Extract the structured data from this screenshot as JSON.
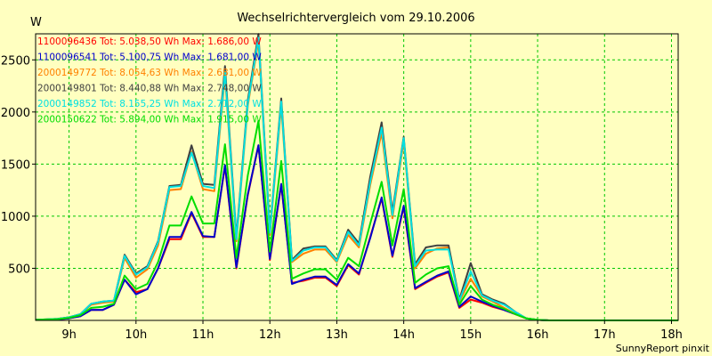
{
  "chart_data": {
    "type": "line",
    "title": "Wechselrichtervergleich vom 29.10.2006",
    "ylabel": "W",
    "footer": "SunnyReport pinxit",
    "xlim": [
      8.5,
      18.1
    ],
    "ylim": [
      0,
      2750
    ],
    "grid": true,
    "legend_position": "top-left",
    "xticks": [
      9,
      10,
      11,
      12,
      13,
      14,
      15,
      16,
      17,
      18
    ],
    "xtick_labels": [
      "9h",
      "10h",
      "11h",
      "12h",
      "13h",
      "14h",
      "15h",
      "16h",
      "17h",
      "18h"
    ],
    "yticks": [
      500,
      1000,
      1500,
      2000,
      2500
    ],
    "ytick_labels": [
      "500",
      "1000",
      "1500",
      "2000",
      "2500"
    ],
    "x": [
      8.5,
      8.83,
      9.0,
      9.17,
      9.33,
      9.5,
      9.67,
      9.83,
      10.0,
      10.17,
      10.33,
      10.5,
      10.67,
      10.83,
      11.0,
      11.17,
      11.33,
      11.5,
      11.67,
      11.83,
      12.0,
      12.17,
      12.33,
      12.5,
      12.67,
      12.83,
      13.0,
      13.17,
      13.33,
      13.5,
      13.67,
      13.83,
      14.0,
      14.17,
      14.33,
      14.5,
      14.67,
      14.83,
      15.0,
      15.17,
      15.33,
      15.5,
      15.67,
      15.83,
      16.0,
      16.17,
      16.33,
      16.5,
      16.67,
      16.83,
      17.0,
      17.17,
      17.33,
      17.5,
      17.67,
      17.83,
      18.0,
      18.1
    ],
    "series": [
      {
        "name": "1100096436",
        "label": "1100096436 Tot: 5.038,50 Wh Max: 1.686,00 W",
        "color": "#FF0000",
        "values": [
          5,
          10,
          20,
          40,
          100,
          100,
          150,
          390,
          270,
          300,
          500,
          780,
          780,
          1030,
          800,
          800,
          1480,
          500,
          1200,
          1680,
          580,
          1300,
          360,
          380,
          410,
          410,
          330,
          530,
          440,
          800,
          1170,
          610,
          1090,
          300,
          360,
          420,
          460,
          120,
          200,
          170,
          130,
          100,
          60,
          20,
          5,
          0,
          0,
          0,
          0,
          0,
          0,
          0,
          0,
          0,
          0,
          0,
          0,
          0
        ]
      },
      {
        "name": "1100096541",
        "label": "1100096541 Tot: 5.100,75 Wh Max: 1.681,00 W",
        "color": "#0000CC",
        "values": [
          5,
          10,
          20,
          40,
          100,
          100,
          150,
          390,
          250,
          300,
          500,
          800,
          800,
          1040,
          810,
          800,
          1490,
          510,
          1210,
          1681,
          590,
          1310,
          350,
          390,
          420,
          420,
          340,
          540,
          450,
          790,
          1180,
          620,
          1100,
          310,
          370,
          430,
          470,
          130,
          230,
          180,
          140,
          100,
          60,
          20,
          5,
          0,
          0,
          0,
          0,
          0,
          0,
          0,
          0,
          0,
          0,
          0,
          0,
          0
        ]
      },
      {
        "name": "2000149772",
        "label": "2000149772 Tot: 8.054,63 Wh Max: 2.681,00 W",
        "color": "#FF8000",
        "values": [
          5,
          15,
          30,
          60,
          150,
          170,
          180,
          600,
          410,
          490,
          720,
          1250,
          1260,
          1620,
          1260,
          1240,
          2350,
          760,
          2060,
          2681,
          820,
          2060,
          560,
          640,
          680,
          680,
          560,
          820,
          700,
          1300,
          1800,
          980,
          1720,
          500,
          640,
          690,
          700,
          180,
          400,
          230,
          180,
          120,
          60,
          20,
          5,
          0,
          0,
          0,
          0,
          0,
          0,
          0,
          0,
          0,
          0,
          0,
          0,
          0
        ]
      },
      {
        "name": "2000149801",
        "label": "2000149801 Tot: 8.440,88 Wh Max: 2.748,00 W",
        "color": "#404040",
        "values": [
          5,
          15,
          30,
          60,
          160,
          180,
          190,
          630,
          450,
          520,
          760,
          1290,
          1300,
          1680,
          1310,
          1300,
          2440,
          800,
          2110,
          2748,
          850,
          2130,
          580,
          690,
          710,
          710,
          580,
          870,
          740,
          1380,
          1900,
          1040,
          1760,
          540,
          700,
          720,
          720,
          200,
          550,
          250,
          200,
          160,
          80,
          20,
          5,
          0,
          0,
          0,
          0,
          0,
          0,
          0,
          0,
          0,
          0,
          0,
          0,
          0
        ]
      },
      {
        "name": "2000149852",
        "label": "2000149852 Tot: 8.155,25 Wh Max: 2.712,00 W",
        "color": "#00E0E0",
        "values": [
          5,
          15,
          30,
          60,
          160,
          180,
          190,
          620,
          440,
          510,
          750,
          1280,
          1290,
          1610,
          1290,
          1270,
          2390,
          780,
          2080,
          2712,
          840,
          2100,
          570,
          670,
          700,
          700,
          570,
          850,
          720,
          1330,
          1850,
          1010,
          1750,
          520,
          670,
          680,
          680,
          190,
          470,
          240,
          190,
          150,
          80,
          20,
          5,
          0,
          0,
          0,
          0,
          0,
          0,
          0,
          0,
          0,
          0,
          0,
          0,
          0
        ]
      },
      {
        "name": "2000150622",
        "label": "2000150622 Tot: 5.894,00 Wh Max: 1.915,00 W",
        "color": "#00DD00",
        "values": [
          5,
          12,
          25,
          50,
          120,
          130,
          160,
          430,
          300,
          350,
          560,
          910,
          910,
          1190,
          930,
          930,
          1690,
          600,
          1390,
          1915,
          660,
          1530,
          400,
          450,
          490,
          490,
          390,
          600,
          520,
          930,
          1330,
          720,
          1260,
          360,
          440,
          500,
          520,
          150,
          330,
          200,
          150,
          110,
          60,
          20,
          5,
          0,
          0,
          0,
          0,
          0,
          0,
          0,
          0,
          0,
          0,
          0,
          0,
          0
        ]
      }
    ]
  }
}
